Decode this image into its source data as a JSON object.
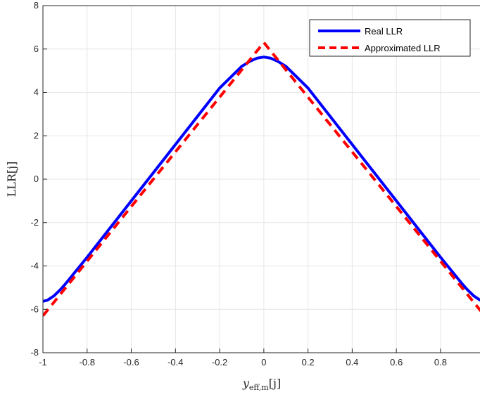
{
  "chart_data": {
    "type": "line",
    "title": "",
    "xlabel": "y_eff,m[j]",
    "xlabel_parts": {
      "base": "y",
      "sub": "eff,m",
      "suffix": "[j]"
    },
    "ylabel": "LLR[j]",
    "xlim": [
      -1,
      1
    ],
    "ylim": [
      -8,
      8
    ],
    "xticks": [
      -1,
      -0.8,
      -0.6,
      -0.4,
      -0.2,
      0,
      0.2,
      0.4,
      0.6,
      0.8
    ],
    "xtick_labels": [
      "-1",
      "-0.8",
      "-0.6",
      "-0.4",
      "-0.2",
      "0",
      "0.2",
      "0.4",
      "0.6",
      "0.8"
    ],
    "yticks": [
      -8,
      -6,
      -4,
      -2,
      0,
      2,
      4,
      6,
      8
    ],
    "ytick_labels": [
      "-8",
      "-6",
      "-4",
      "-2",
      "0",
      "2",
      "4",
      "6",
      "8"
    ],
    "grid": true,
    "legend_position": "top-right",
    "series": [
      {
        "name": "Real LLR",
        "color": "#0000ff",
        "style": "solid",
        "x": [
          -1,
          -0.98,
          -0.95,
          -0.92,
          -0.9,
          -0.8,
          -0.7,
          -0.6,
          -0.5,
          -0.4,
          -0.3,
          -0.2,
          -0.1,
          -0.06,
          -0.03,
          0,
          0.03,
          0.06,
          0.1,
          0.2,
          0.3,
          0.4,
          0.5,
          0.6,
          0.7,
          0.8,
          0.9,
          0.92,
          0.95,
          0.98,
          1
        ],
        "y": [
          -5.63,
          -5.58,
          -5.38,
          -5.08,
          -4.85,
          -3.6,
          -2.3,
          -1.0,
          0.3,
          1.6,
          2.9,
          4.2,
          5.2,
          5.45,
          5.58,
          5.63,
          5.58,
          5.45,
          5.2,
          4.2,
          2.9,
          1.6,
          0.3,
          -1.0,
          -2.3,
          -3.6,
          -4.85,
          -5.08,
          -5.38,
          -5.58,
          -5.63
        ]
      },
      {
        "name": "Approximated LLR",
        "color": "#ff0000",
        "style": "dashed",
        "x": [
          -1,
          0,
          1
        ],
        "y": [
          -6.3,
          6.3,
          -6.3
        ]
      }
    ]
  }
}
